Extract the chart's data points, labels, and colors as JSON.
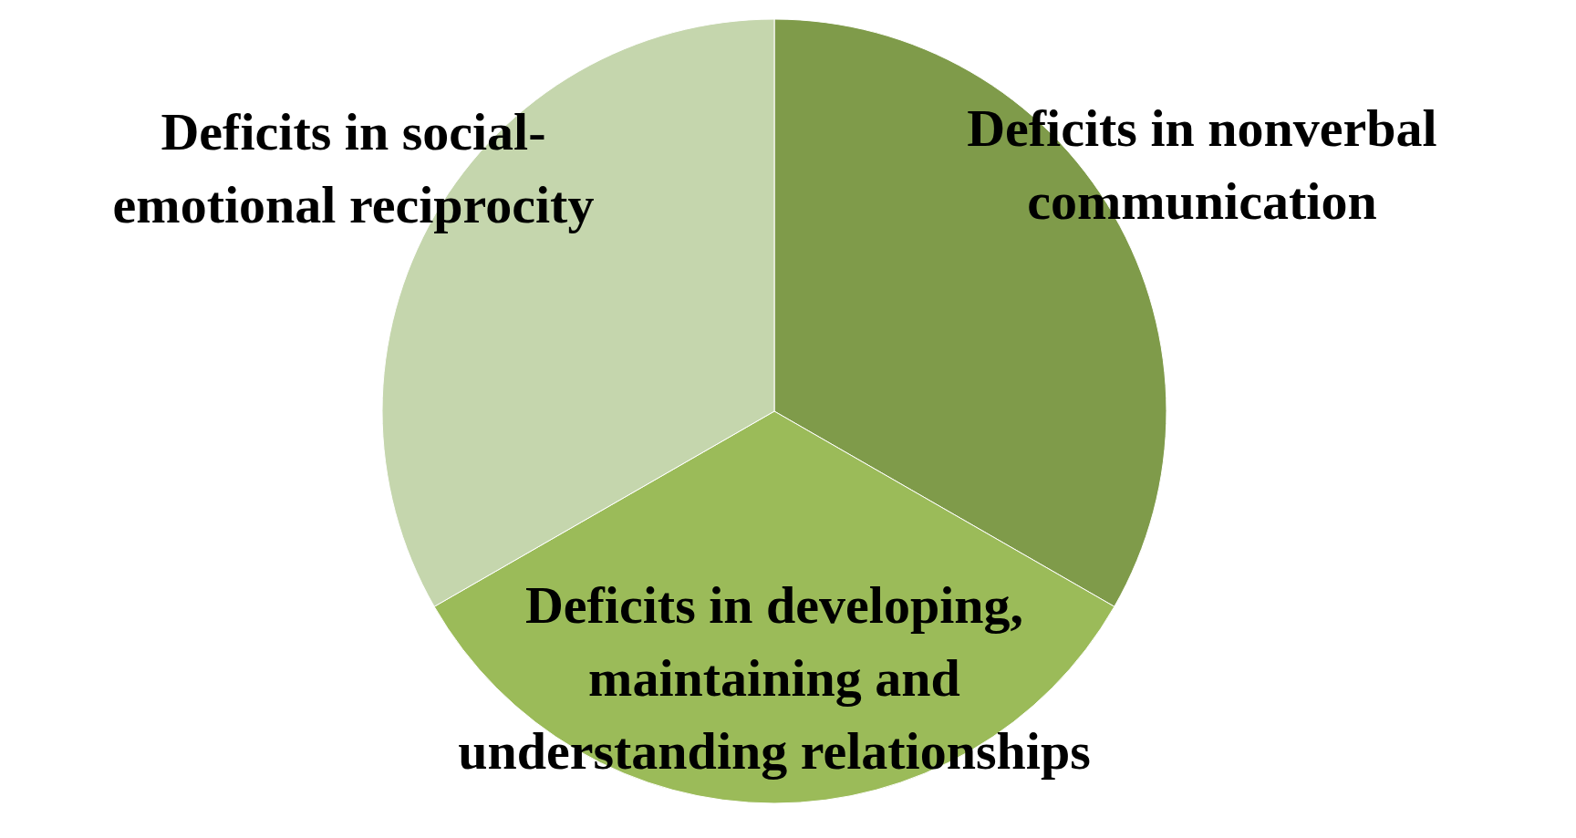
{
  "chart_data": {
    "type": "pie",
    "categories": [
      "Deficits in nonverbal communication",
      "Deficits in developing, maintaining and understanding relationships",
      "Deficits in social-emotional reciprocity"
    ],
    "values": [
      33.3,
      33.4,
      33.3
    ],
    "colors": [
      "#7f9b4a",
      "#9bbb59",
      "#c5d6ad"
    ],
    "legend": false
  }
}
